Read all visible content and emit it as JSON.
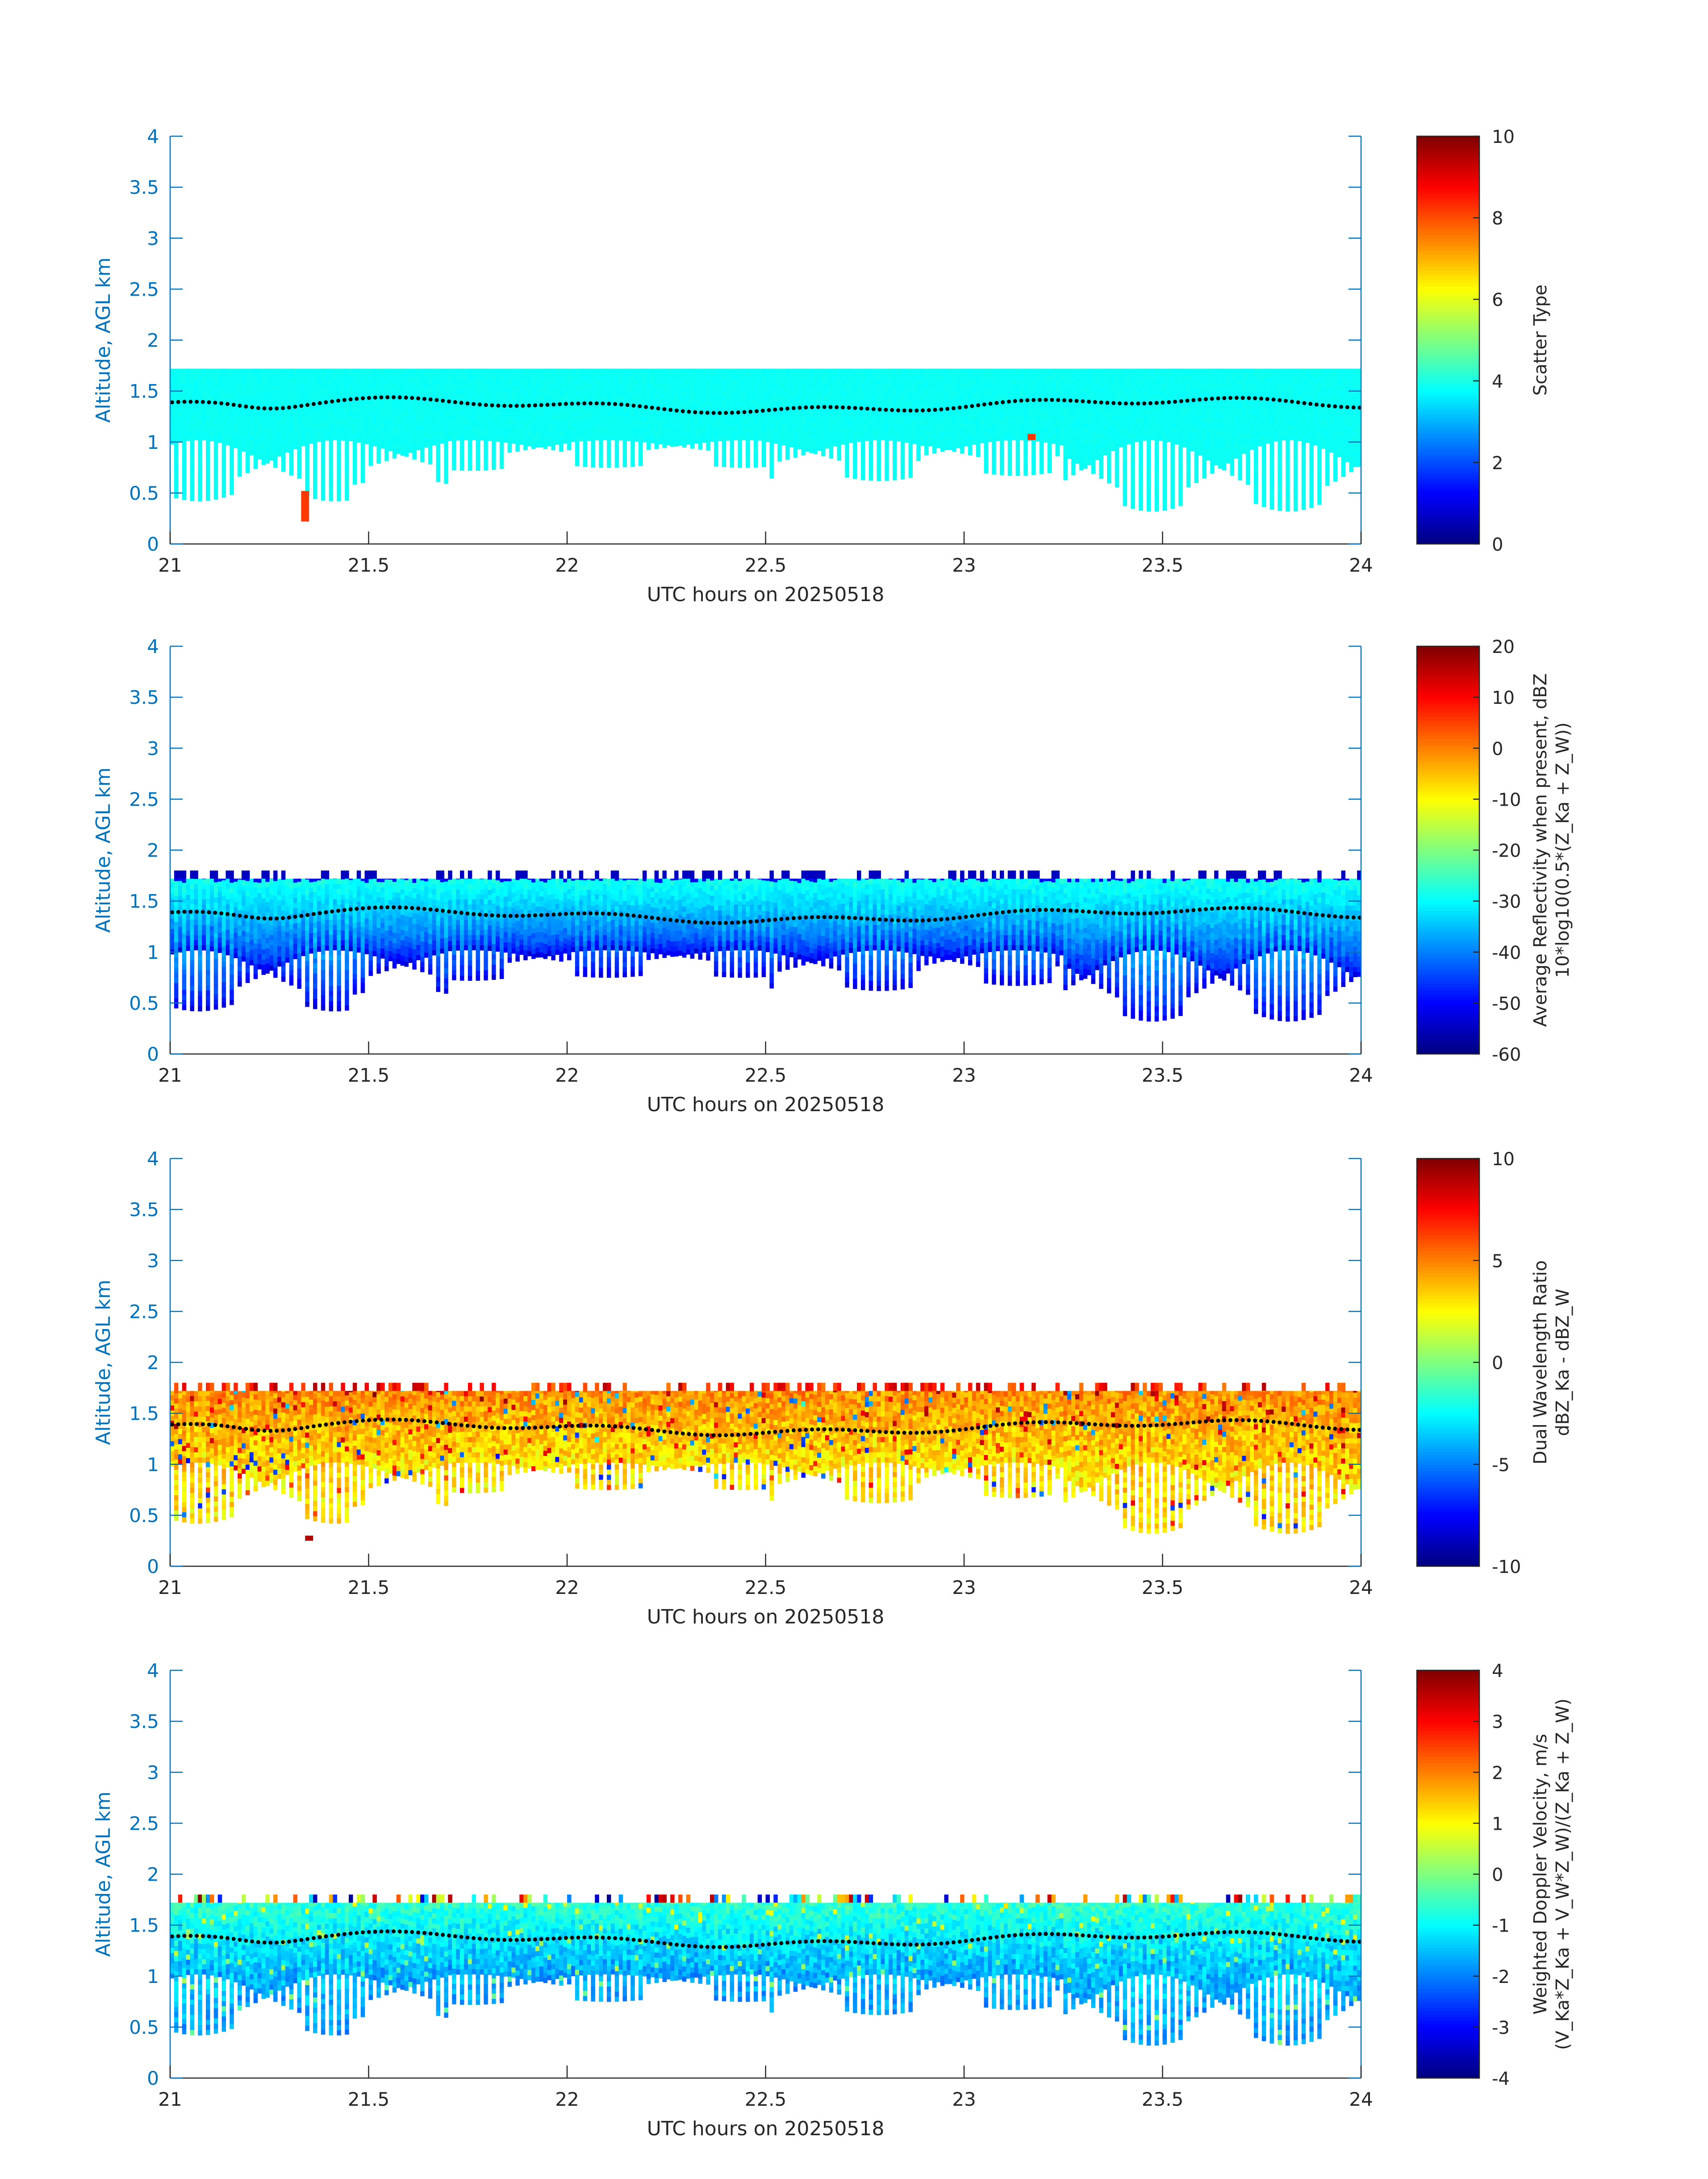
{
  "figure": {
    "x_axis_label": "UTC hours on 20250518",
    "y_axis_label": "Altitude, AGL km",
    "x_ticks": [
      "21",
      "21.5",
      "22",
      "22.5",
      "23",
      "23.5",
      "24"
    ],
    "y_ticks": [
      "0",
      "0.5",
      "1",
      "1.5",
      "2",
      "2.5",
      "3",
      "3.5",
      "4"
    ]
  },
  "chart_data": [
    {
      "type": "heatmap",
      "xlabel": "UTC hours on 20250518",
      "ylabel": "Altitude, AGL km",
      "xlim": [
        21,
        24
      ],
      "ylim": [
        0,
        4
      ],
      "x_tick_values": [
        21,
        21.5,
        22,
        22.5,
        23,
        23.5,
        24
      ],
      "y_tick_values": [
        0,
        0.5,
        1,
        1.5,
        2,
        2.5,
        3,
        3.5,
        4
      ],
      "colormap": "jet",
      "clim": [
        0,
        10
      ],
      "colorbar_ticks": [
        "0",
        "2",
        "4",
        "6",
        "8",
        "10"
      ],
      "colorbar_tick_values": [
        0,
        2,
        4,
        6,
        8,
        10
      ],
      "colorbar_label_lines": [
        "Scatter Type"
      ],
      "field": "scatter_type",
      "layer_top_km": 1.72,
      "outliers": [
        {
          "x": 21.33,
          "y_range": [
            0.22,
            0.52
          ],
          "value": 8.2
        },
        {
          "x": 23.16,
          "y_range": [
            1.02,
            1.08
          ],
          "value": 8.2
        }
      ],
      "overlay": "cloud base (black dotted line)"
    },
    {
      "type": "heatmap",
      "xlabel": "UTC hours on 20250518",
      "ylabel": "Altitude, AGL km",
      "xlim": [
        21,
        24
      ],
      "ylim": [
        0,
        4
      ],
      "x_tick_values": [
        21,
        21.5,
        22,
        22.5,
        23,
        23.5,
        24
      ],
      "y_tick_values": [
        0,
        0.5,
        1,
        1.5,
        2,
        2.5,
        3,
        3.5,
        4
      ],
      "colormap": "jet",
      "clim": [
        -60,
        20
      ],
      "colorbar_ticks": [
        "-60",
        "-50",
        "-40",
        "-30",
        "-20",
        "-10",
        "0",
        "10",
        "20"
      ],
      "colorbar_tick_values": [
        -60,
        -50,
        -40,
        -30,
        -20,
        -10,
        0,
        10,
        20
      ],
      "colorbar_label_lines": [
        "Average Reflectivity when present, dBZ",
        "10*log10(0.5*(Z_Ka + Z_W))"
      ],
      "field": "reflectivity",
      "layer_top_km": 1.72,
      "overlay": "cloud base (black dotted line)"
    },
    {
      "type": "heatmap",
      "xlabel": "UTC hours on 20250518",
      "ylabel": "Altitude, AGL km",
      "xlim": [
        21,
        24
      ],
      "ylim": [
        0,
        4
      ],
      "x_tick_values": [
        21,
        21.5,
        22,
        22.5,
        23,
        23.5,
        24
      ],
      "y_tick_values": [
        0,
        0.5,
        1,
        1.5,
        2,
        2.5,
        3,
        3.5,
        4
      ],
      "colormap": "jet",
      "clim": [
        -10,
        10
      ],
      "colorbar_ticks": [
        "-10",
        "-5",
        "0",
        "5",
        "10"
      ],
      "colorbar_tick_values": [
        -10,
        -5,
        0,
        5,
        10
      ],
      "colorbar_label_lines": [
        "Dual Wavelength Ratio",
        "dBZ_Ka - dBZ_W"
      ],
      "field": "dwr",
      "layer_top_km": 1.72,
      "outliers": [
        {
          "x": 21.34,
          "y_range": [
            0.25,
            0.3
          ],
          "value": 9
        }
      ],
      "overlay": "cloud base (black dotted line)"
    },
    {
      "type": "heatmap",
      "xlabel": "UTC hours on 20250518",
      "ylabel": "Altitude, AGL km",
      "xlim": [
        21,
        24
      ],
      "ylim": [
        0,
        4
      ],
      "x_tick_values": [
        21,
        21.5,
        22,
        22.5,
        23,
        23.5,
        24
      ],
      "y_tick_values": [
        0,
        0.5,
        1,
        1.5,
        2,
        2.5,
        3,
        3.5,
        4
      ],
      "colormap": "jet",
      "clim": [
        -4,
        4
      ],
      "colorbar_ticks": [
        "-4",
        "-3",
        "-2",
        "-1",
        "0",
        "1",
        "2",
        "3",
        "4"
      ],
      "colorbar_tick_values": [
        -4,
        -3,
        -2,
        -1,
        0,
        1,
        2,
        3,
        4
      ],
      "colorbar_label_lines": [
        "Weighted Doppler Velocity, m/s",
        "(V_Ka*Z_Ka + V_W*Z_W)/(Z_Ka + Z_W)"
      ],
      "field": "velocity",
      "layer_top_km": 1.72,
      "overlay": "cloud base (black dotted line)"
    }
  ]
}
